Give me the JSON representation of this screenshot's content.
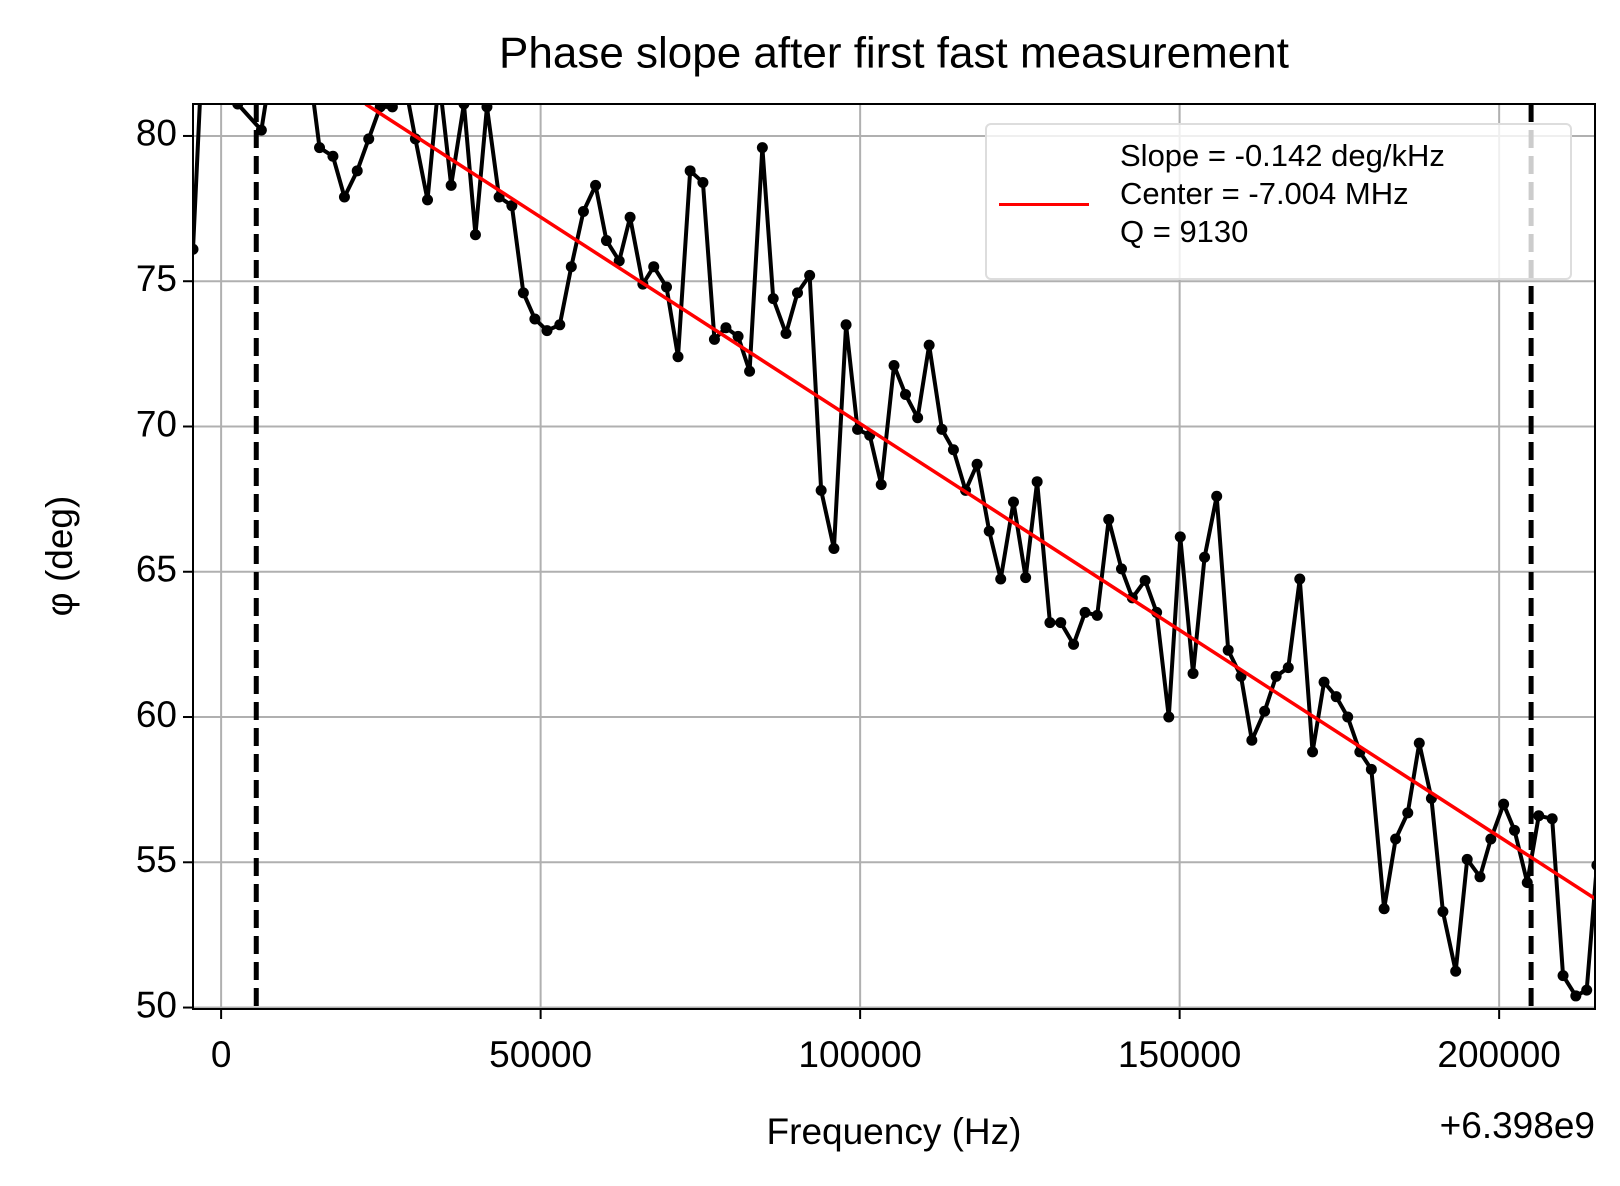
{
  "chart_data": {
    "type": "line",
    "title": "Phase slope after first fast measurement",
    "x_label": "Frequency (Hz)",
    "y_label": "φ (deg)",
    "x_offset_label": "+6.398e9",
    "xlim": [
      -4400,
      215000
    ],
    "ylim": [
      49.95,
      81.1
    ],
    "xticks": [
      0,
      50000,
      100000,
      150000,
      200000
    ],
    "yticks": [
      50,
      55,
      60,
      65,
      70,
      75,
      80
    ],
    "grid": true,
    "vlines": [
      5500,
      205000
    ],
    "vline_color": "#000000",
    "series": [
      {
        "name": null,
        "color": "#000000",
        "marker": true,
        "x": [
          -4400,
          -2500,
          650,
          2600,
          6300,
          8300,
          10300,
          12300,
          14000,
          15400,
          17500,
          19300,
          21300,
          23100,
          24900,
          26800,
          28600,
          30400,
          32300,
          34100,
          36000,
          38000,
          39800,
          41600,
          43500,
          45500,
          47300,
          49100,
          51000,
          53000,
          54800,
          56700,
          58600,
          60300,
          62300,
          64000,
          66000,
          67700,
          69700,
          71500,
          73400,
          75400,
          77200,
          79000,
          80900,
          82700,
          84700,
          86400,
          88400,
          90200,
          92100,
          93900,
          95900,
          97800,
          99600,
          101500,
          103300,
          105300,
          107100,
          109000,
          110800,
          112800,
          114600,
          116500,
          118300,
          120200,
          122000,
          124000,
          125900,
          127700,
          129700,
          131400,
          133400,
          135200,
          137100,
          138900,
          140900,
          142600,
          144600,
          146400,
          148300,
          150100,
          152100,
          153900,
          155800,
          157600,
          159600,
          161300,
          163300,
          165100,
          167000,
          168800,
          170800,
          172600,
          174500,
          176300,
          178200,
          180000,
          182000,
          183800,
          185700,
          187500,
          189400,
          191200,
          193200,
          195000,
          197000,
          198700,
          200700,
          202400,
          204400,
          206200,
          208300,
          210000,
          212000,
          213700,
          215300
        ],
        "values": [
          76.1,
          85,
          84,
          81.1,
          80.2,
          83,
          84,
          83,
          82,
          79.6,
          79.3,
          77.9,
          78.8,
          79.9,
          81.0,
          81.0,
          82,
          79.9,
          77.8,
          82,
          78.3,
          81.1,
          76.6,
          81.0,
          77.9,
          77.6,
          74.6,
          73.7,
          73.3,
          73.5,
          75.5,
          77.4,
          78.3,
          76.4,
          75.7,
          77.2,
          74.9,
          75.5,
          74.8,
          72.4,
          78.8,
          78.4,
          73.0,
          73.4,
          73.1,
          71.9,
          79.6,
          74.4,
          73.2,
          74.6,
          75.2,
          67.8,
          65.8,
          73.5,
          69.9,
          69.7,
          68.0,
          72.1,
          71.1,
          70.3,
          72.8,
          69.9,
          69.2,
          67.8,
          68.7,
          66.4,
          64.75,
          67.4,
          64.8,
          68.1,
          63.25,
          63.25,
          62.5,
          63.6,
          63.5,
          66.8,
          65.1,
          64.1,
          64.7,
          63.6,
          60.0,
          66.2,
          61.5,
          65.5,
          67.6,
          62.3,
          61.4,
          59.2,
          60.2,
          61.4,
          61.7,
          64.75,
          58.8,
          61.2,
          60.7,
          60.0,
          58.8,
          58.2,
          53.4,
          55.8,
          56.7,
          59.1,
          57.2,
          53.3,
          51.25,
          55.1,
          54.5,
          55.8,
          57.0,
          56.1,
          54.3,
          56.6,
          56.5,
          51.1,
          50.4,
          50.6,
          54.9
        ]
      },
      {
        "name": "Slope = -0.142 deg/kHz\nCenter = -7.004 MHz\nQ = 9130",
        "color": "#ff0000",
        "marker": false,
        "x": [
          22600,
          215000
        ],
        "values": [
          81.1,
          53.75
        ]
      }
    ]
  }
}
